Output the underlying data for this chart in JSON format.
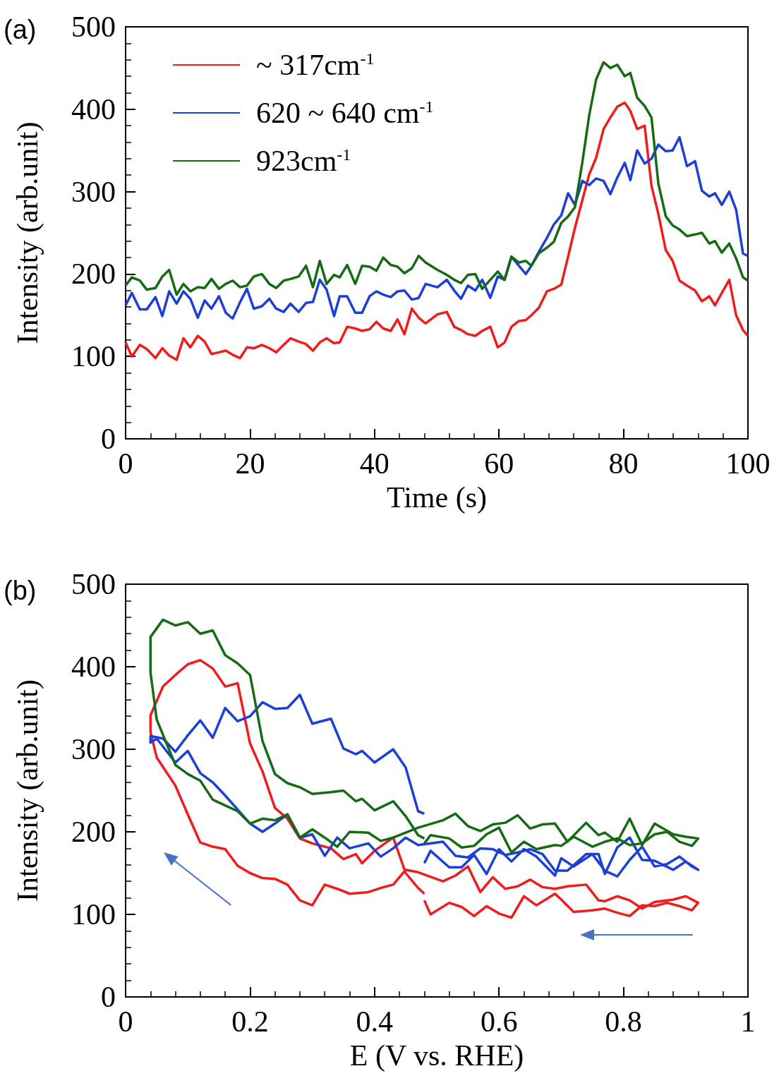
{
  "chart_data": [
    {
      "type": "line",
      "title": "(a)",
      "xlabel": "Time (s)",
      "ylabel": "Intensity (arb.unit)",
      "xlim": [
        0,
        100
      ],
      "xticks": [
        0,
        20,
        40,
        60,
        80,
        100
      ],
      "ylim": [
        0,
        500
      ],
      "yticks": [
        0,
        100,
        200,
        300,
        400,
        500
      ],
      "legend": "top left",
      "x": [
        0,
        1.0,
        2.3,
        3.4,
        4.8,
        5.9,
        7.0,
        8.2,
        9.3,
        10.4,
        11.6,
        12.7,
        13.8,
        15.0,
        16.1,
        17.2,
        18.4,
        19.5,
        20.6,
        21.9,
        23.1,
        24.2,
        25.4,
        26.5,
        27.8,
        29.0,
        30.1,
        31.2,
        32.3,
        33.5,
        34.4,
        35.6,
        36.9,
        38.0,
        39.2,
        40.3,
        41.4,
        42.6,
        43.7,
        44.8,
        46.0,
        47.1,
        48.2,
        50.1,
        51.6,
        52.8,
        53.9,
        55.0,
        56.2,
        57.3,
        58.6,
        59.8,
        60.9,
        62.0,
        63.2,
        64.3,
        65.2,
        66.4,
        67.7,
        68.8,
        70.0,
        71.1,
        72.2,
        73.4,
        74.5,
        75.6,
        76.8,
        77.9,
        79.0,
        80.2,
        81.1,
        82.2,
        83.4,
        84.5,
        85.6,
        86.8,
        87.9,
        89.0,
        90.2,
        91.5,
        92.6,
        93.8,
        94.7,
        95.8,
        97.0,
        98.1,
        99.2,
        100
      ],
      "series": [
        {
          "name": "~ 317cm$^{-1}$",
          "color": "#ee1c1c",
          "values": [
            117,
            100,
            114,
            109,
            98,
            110,
            101,
            96,
            122,
            111,
            125,
            118,
            103,
            105,
            107,
            102,
            98,
            111,
            110,
            114,
            110,
            105,
            114,
            122,
            118,
            115,
            107,
            117,
            122,
            116,
            117,
            136,
            134,
            131,
            133,
            142,
            134,
            131,
            145,
            127,
            158,
            147,
            140,
            151,
            154,
            136,
            132,
            127,
            125,
            131,
            136,
            111,
            117,
            136,
            143,
            144,
            150,
            159,
            179,
            182,
            187,
            221,
            256,
            290,
            321,
            341,
            376,
            390,
            403,
            408,
            398,
            376,
            380,
            307,
            273,
            229,
            216,
            192,
            186,
            180,
            167,
            173,
            162,
            177,
            193,
            150,
            132,
            125
          ]
        },
        {
          "name": "620 ~ 640 cm$^{-1}$",
          "color": "#1c3fd6",
          "values": [
            162,
            177,
            157,
            157,
            172,
            149,
            179,
            164,
            179,
            170,
            147,
            168,
            158,
            173,
            153,
            146,
            166,
            182,
            158,
            161,
            170,
            158,
            154,
            164,
            154,
            165,
            166,
            193,
            181,
            149,
            173,
            173,
            153,
            153,
            173,
            179,
            175,
            172,
            179,
            180,
            169,
            171,
            188,
            184,
            193,
            180,
            170,
            186,
            180,
            193,
            171,
            197,
            193,
            221,
            210,
            200,
            210,
            227,
            244,
            260,
            271,
            298,
            284,
            313,
            308,
            316,
            313,
            297,
            317,
            335,
            314,
            350,
            334,
            340,
            357,
            349,
            350,
            366,
            331,
            337,
            301,
            294,
            298,
            284,
            300,
            278,
            225,
            222
          ]
        },
        {
          "name": "923cm$^{-1}$",
          "color": "#146b14",
          "values": [
            186,
            196,
            192,
            181,
            183,
            197,
            205,
            175,
            188,
            179,
            184,
            183,
            194,
            182,
            188,
            192,
            184,
            186,
            197,
            200,
            188,
            183,
            192,
            194,
            197,
            210,
            184,
            216,
            188,
            199,
            196,
            211,
            188,
            210,
            209,
            204,
            220,
            211,
            209,
            201,
            207,
            222,
            214,
            205,
            199,
            193,
            189,
            199,
            200,
            182,
            193,
            203,
            193,
            221,
            214,
            216,
            210,
            225,
            232,
            239,
            262,
            270,
            281,
            336,
            393,
            436,
            457,
            450,
            454,
            440,
            444,
            414,
            404,
            390,
            310,
            270,
            259,
            254,
            246,
            248,
            250,
            237,
            240,
            226,
            237,
            219,
            196,
            192
          ]
        }
      ]
    },
    {
      "type": "line",
      "title": "(b)",
      "xlabel": "E (V vs. RHE)",
      "ylabel": "Intensity (arb.unit)",
      "xlim": [
        0,
        1
      ],
      "xticks": [
        0,
        0.2,
        0.4,
        0.6,
        0.8,
        1
      ],
      "ylim": [
        0,
        500
      ],
      "yticks": [
        0,
        100,
        200,
        300,
        400,
        500
      ],
      "series": [
        {
          "color": "#ee1c1c",
          "x": [
            0.48,
            0.49,
            0.52,
            0.54,
            0.56,
            0.58,
            0.6,
            0.62,
            0.64,
            0.66,
            0.69,
            0.7,
            0.72,
            0.75,
            0.77,
            0.79,
            0.81,
            0.83,
            0.85,
            0.87,
            0.89,
            0.91,
            0.92,
            0.9,
            0.88,
            0.85,
            0.83,
            0.81,
            0.79,
            0.77,
            0.76,
            0.74,
            0.71,
            0.69,
            0.67,
            0.65,
            0.63,
            0.61,
            0.59,
            0.57,
            0.55,
            0.53,
            0.51,
            0.47,
            0.45,
            0.43,
            0.41,
            0.39,
            0.36,
            0.34,
            0.32,
            0.3,
            0.28,
            0.26,
            0.24,
            0.22,
            0.2,
            0.18,
            0.16,
            0.14,
            0.12,
            0.1,
            0.08,
            0.05,
            0.04,
            0.04,
            0.06,
            0.08,
            0.1,
            0.12,
            0.14,
            0.16,
            0.18,
            0.2,
            0.22,
            0.24,
            0.26,
            0.28,
            0.3,
            0.33,
            0.35,
            0.37,
            0.38,
            0.4,
            0.43,
            0.45,
            0.47,
            0.48
          ],
          "values": [
            117,
            100,
            114,
            109,
            98,
            110,
            101,
            96,
            122,
            111,
            125,
            118,
            103,
            105,
            107,
            102,
            98,
            111,
            110,
            114,
            110,
            105,
            114,
            122,
            118,
            115,
            107,
            117,
            122,
            116,
            117,
            136,
            134,
            131,
            133,
            142,
            134,
            131,
            145,
            127,
            158,
            147,
            140,
            151,
            154,
            136,
            132,
            127,
            125,
            131,
            136,
            111,
            117,
            136,
            143,
            144,
            150,
            159,
            179,
            182,
            187,
            221,
            256,
            290,
            321,
            341,
            376,
            390,
            403,
            408,
            398,
            376,
            380,
            307,
            273,
            229,
            216,
            192,
            186,
            180,
            167,
            173,
            162,
            177,
            193,
            150,
            132,
            125
          ]
        },
        {
          "color": "#1c3fd6",
          "x": [
            0.48,
            0.49,
            0.52,
            0.54,
            0.56,
            0.58,
            0.6,
            0.62,
            0.64,
            0.66,
            0.69,
            0.7,
            0.72,
            0.75,
            0.77,
            0.79,
            0.81,
            0.83,
            0.85,
            0.87,
            0.89,
            0.91,
            0.92,
            0.9,
            0.88,
            0.85,
            0.83,
            0.81,
            0.79,
            0.77,
            0.76,
            0.74,
            0.71,
            0.69,
            0.67,
            0.65,
            0.63,
            0.61,
            0.59,
            0.57,
            0.55,
            0.53,
            0.51,
            0.47,
            0.45,
            0.43,
            0.41,
            0.39,
            0.36,
            0.34,
            0.32,
            0.3,
            0.28,
            0.26,
            0.24,
            0.22,
            0.2,
            0.18,
            0.16,
            0.14,
            0.12,
            0.1,
            0.08,
            0.05,
            0.04,
            0.04,
            0.06,
            0.08,
            0.1,
            0.12,
            0.14,
            0.16,
            0.18,
            0.2,
            0.22,
            0.24,
            0.26,
            0.28,
            0.3,
            0.33,
            0.35,
            0.37,
            0.38,
            0.4,
            0.43,
            0.45,
            0.47,
            0.48
          ],
          "values": [
            162,
            177,
            157,
            157,
            172,
            149,
            179,
            164,
            179,
            170,
            147,
            168,
            158,
            173,
            153,
            146,
            166,
            182,
            158,
            161,
            170,
            158,
            154,
            164,
            154,
            165,
            166,
            193,
            181,
            149,
            173,
            173,
            153,
            153,
            173,
            179,
            175,
            172,
            179,
            180,
            169,
            171,
            188,
            184,
            193,
            180,
            170,
            186,
            180,
            193,
            171,
            197,
            193,
            221,
            210,
            200,
            210,
            227,
            244,
            260,
            271,
            298,
            284,
            313,
            308,
            316,
            313,
            297,
            317,
            335,
            314,
            350,
            334,
            340,
            357,
            349,
            350,
            366,
            331,
            337,
            301,
            294,
            298,
            284,
            300,
            278,
            225,
            222
          ]
        },
        {
          "color": "#146b14",
          "x": [
            0.48,
            0.49,
            0.52,
            0.54,
            0.56,
            0.58,
            0.6,
            0.62,
            0.64,
            0.66,
            0.69,
            0.7,
            0.72,
            0.75,
            0.77,
            0.79,
            0.81,
            0.83,
            0.85,
            0.87,
            0.89,
            0.91,
            0.92,
            0.9,
            0.88,
            0.85,
            0.83,
            0.81,
            0.79,
            0.77,
            0.76,
            0.74,
            0.71,
            0.69,
            0.67,
            0.65,
            0.63,
            0.61,
            0.59,
            0.57,
            0.55,
            0.53,
            0.51,
            0.47,
            0.45,
            0.43,
            0.41,
            0.39,
            0.36,
            0.34,
            0.32,
            0.3,
            0.28,
            0.26,
            0.24,
            0.22,
            0.2,
            0.18,
            0.16,
            0.14,
            0.12,
            0.1,
            0.08,
            0.05,
            0.04,
            0.04,
            0.06,
            0.08,
            0.1,
            0.12,
            0.14,
            0.16,
            0.18,
            0.2,
            0.22,
            0.24,
            0.26,
            0.28,
            0.3,
            0.33,
            0.35,
            0.37,
            0.38,
            0.4,
            0.43,
            0.45,
            0.47,
            0.48
          ],
          "values": [
            186,
            196,
            192,
            181,
            183,
            197,
            205,
            175,
            188,
            179,
            184,
            183,
            194,
            182,
            188,
            192,
            184,
            186,
            197,
            200,
            188,
            183,
            192,
            194,
            197,
            210,
            184,
            216,
            188,
            199,
            196,
            211,
            188,
            210,
            209,
            204,
            220,
            211,
            209,
            201,
            207,
            222,
            214,
            205,
            199,
            193,
            189,
            199,
            200,
            182,
            193,
            203,
            193,
            221,
            214,
            216,
            210,
            225,
            232,
            239,
            262,
            270,
            281,
            336,
            393,
            436,
            457,
            450,
            454,
            440,
            444,
            414,
            404,
            390,
            310,
            270,
            259,
            254,
            246,
            248,
            250,
            237,
            240,
            226,
            237,
            219,
            196,
            192
          ]
        }
      ]
    }
  ]
}
